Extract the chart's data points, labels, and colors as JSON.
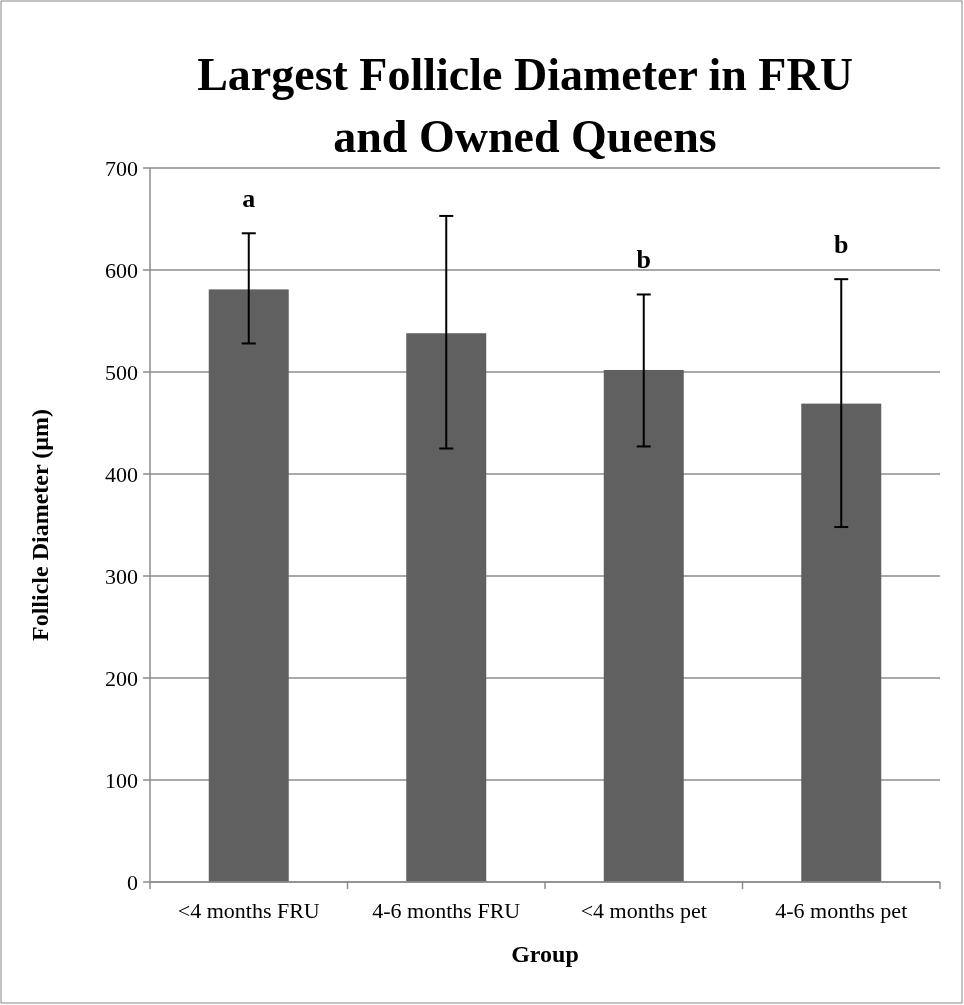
{
  "chart_data": {
    "type": "bar",
    "title": "Largest Follicle Diameter in FRU and Owned Queens",
    "xlabel": "Group",
    "ylabel": "Follicle Diameter (µm)",
    "categories": [
      "<4 months FRU",
      "4-6 months FRU",
      "<4 months pet",
      "4-6 months pet"
    ],
    "values": [
      581,
      538,
      502,
      469
    ],
    "color": "#606060",
    "errors": [
      [
        528,
        636
      ],
      [
        425,
        653
      ],
      [
        427,
        576
      ],
      [
        348,
        591
      ]
    ],
    "ylim": [
      0,
      700
    ],
    "yticks": [
      0,
      100,
      200,
      300,
      400,
      500,
      600,
      700
    ],
    "grid": "y",
    "annotations": [
      {
        "text": "a",
        "x": "<4 months FRU",
        "y": 636
      },
      {
        "text": "b",
        "x": "<4 months pet",
        "y": 576
      },
      {
        "text": "b",
        "x": "4-6 months pet",
        "y": 591
      }
    ]
  }
}
